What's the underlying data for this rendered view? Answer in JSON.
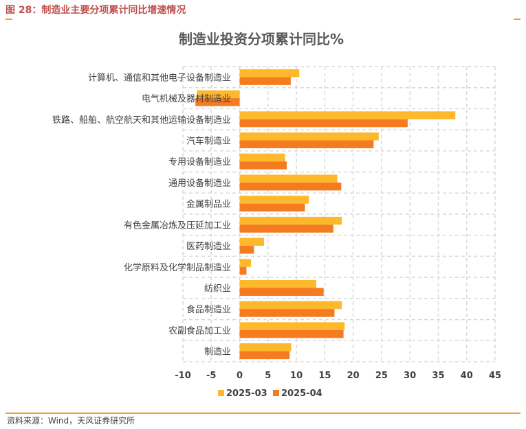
{
  "figure": {
    "label": "图 28：制造业主要分项累计同比增速情况",
    "source": "资料来源：Wind，天风证券研究所"
  },
  "colors": {
    "series1": "#fdb92b",
    "series2": "#f47b20",
    "grid": "#d9d9d9",
    "accent": "#f29c38"
  },
  "chart_data": {
    "type": "bar",
    "orientation": "horizontal",
    "title": "制造业投资分项累计同比%",
    "categories": [
      "计算机、通信和其他电子设备制造业",
      "电气机械及器材制造业",
      "铁路、船舶、航空航天和其他运输设备制造业",
      "汽车制造业",
      "专用设备制造业",
      "通用设备制造业",
      "金属制品业",
      "有色金属冶炼及压延加工业",
      "医药制造业",
      "化学原料及化学制品制造业",
      "纺织业",
      "食品制造业",
      "农副食品加工业",
      "制造业"
    ],
    "series": [
      {
        "name": "2025-03",
        "values": [
          10.5,
          -7.5,
          38.0,
          24.5,
          8.0,
          17.2,
          12.2,
          18.0,
          4.3,
          2.0,
          13.5,
          18.0,
          18.5,
          9.1
        ]
      },
      {
        "name": "2025-04",
        "values": [
          9.0,
          -7.8,
          29.6,
          23.6,
          8.3,
          17.9,
          11.5,
          16.5,
          2.5,
          1.2,
          14.8,
          16.7,
          18.3,
          8.8
        ]
      }
    ],
    "xlim": [
      -10,
      45
    ],
    "xticks": [
      -10,
      -5,
      0,
      5,
      10,
      15,
      20,
      25,
      30,
      35,
      40,
      45
    ],
    "grid": true,
    "legend_position": "bottom"
  }
}
